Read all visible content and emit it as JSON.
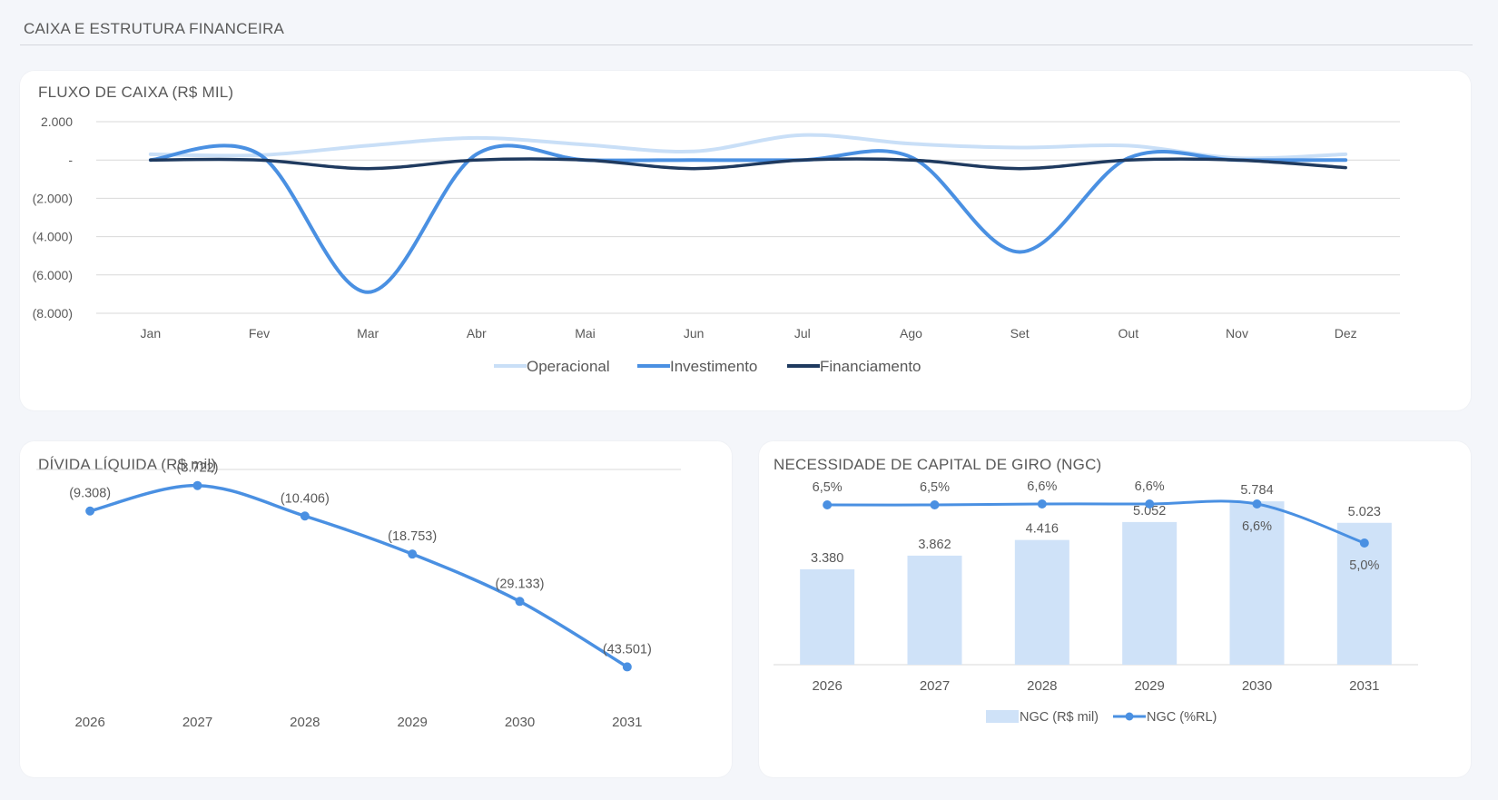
{
  "page": {
    "section_title": "CAIXA E ESTRUTURA FINANCEIRA"
  },
  "colors": {
    "operacional": "#c9dff7",
    "investimento": "#4a90e2",
    "financiamento": "#1f3a5f",
    "divida": "#4a90e2",
    "ngc_bar": "#cfe2f8",
    "ngc_line": "#4a90e2",
    "grid": "#d9d9d9",
    "text": "#595959"
  },
  "cards": {
    "fluxo": {
      "title": "FLUXO DE CAIXA (R$ MIL)"
    },
    "divida": {
      "title": "DÍVIDA LÍQUIDA (R$ mil)"
    },
    "ngc": {
      "title": "NECESSIDADE DE CAPITAL DE GIRO (NGC)"
    }
  },
  "chart_data": [
    {
      "id": "fluxo",
      "type": "line",
      "title": "FLUXO DE CAIXA (R$ MIL)",
      "categories": [
        "Jan",
        "Fev",
        "Mar",
        "Abr",
        "Mai",
        "Jun",
        "Jul",
        "Ago",
        "Set",
        "Out",
        "Nov",
        "Dez"
      ],
      "ylim": [
        -8000,
        2000
      ],
      "yticks": [
        2000,
        0,
        -2000,
        -4000,
        -6000,
        -8000
      ],
      "ytick_labels": [
        "2.000",
        "-",
        "(2.000)",
        "(4.000)",
        "(6.000)",
        "(8.000)"
      ],
      "grid": true,
      "legend": "bottom",
      "series": [
        {
          "name": "Operacional",
          "values": [
            300,
            250,
            750,
            1150,
            800,
            450,
            1300,
            850,
            650,
            750,
            100,
            300
          ]
        },
        {
          "name": "Investimento",
          "values": [
            0,
            300,
            -6900,
            300,
            0,
            0,
            0,
            150,
            -4800,
            100,
            0,
            0
          ]
        },
        {
          "name": "Financiamento",
          "values": [
            0,
            0,
            -450,
            0,
            0,
            -450,
            0,
            0,
            -450,
            0,
            0,
            -400
          ]
        }
      ]
    },
    {
      "id": "divida",
      "type": "line",
      "title": "DÍVIDA LÍQUIDA (R$ mil)",
      "categories": [
        "2026",
        "2027",
        "2028",
        "2029",
        "2030",
        "2031"
      ],
      "series": [
        {
          "values": [
            -9308,
            -3722,
            -10406,
            -18753,
            -29133,
            -43501
          ]
        }
      ],
      "data_labels": [
        "(9.308)",
        "(3.722)",
        "(10.406)",
        "(18.753)",
        "(29.133)",
        "(43.501)"
      ],
      "ylim": [
        -47000,
        0
      ],
      "grid": false
    },
    {
      "id": "ngc",
      "type": "bar",
      "title": "NECESSIDADE DE CAPITAL DE GIRO (NGC)",
      "categories": [
        "2026",
        "2027",
        "2028",
        "2029",
        "2030",
        "2031"
      ],
      "legend": "bottom",
      "series": [
        {
          "name": "NGC (R$ mil)",
          "type": "bar",
          "values": [
            3380,
            3862,
            4416,
            5052,
            5784,
            5023
          ],
          "labels": [
            "3.380",
            "3.862",
            "4.416",
            "5.052",
            "5.784",
            "5.023"
          ]
        },
        {
          "name": "NGC (%RL)",
          "type": "line",
          "values": [
            6.5,
            6.5,
            6.6,
            6.6,
            6.6,
            5.0
          ],
          "labels": [
            "6,5%",
            "6,5%",
            "6,6%",
            "6,6%",
            "6,6%",
            "5,0%"
          ]
        }
      ]
    }
  ]
}
